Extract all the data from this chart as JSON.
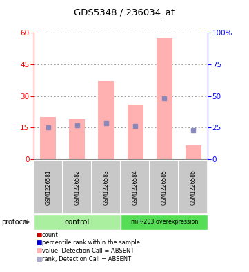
{
  "title": "GDS5348 / 236034_at",
  "samples": [
    "GSM1226581",
    "GSM1226582",
    "GSM1226583",
    "GSM1226584",
    "GSM1226585",
    "GSM1226586"
  ],
  "pink_bar_values": [
    20.0,
    19.0,
    37.0,
    26.0,
    57.5,
    6.5
  ],
  "blue_marker_values": [
    25.0,
    26.5,
    28.5,
    26.0,
    48.0,
    23.0
  ],
  "left_ylim": [
    0,
    60
  ],
  "right_ylim": [
    0,
    100
  ],
  "left_yticks": [
    0,
    15,
    30,
    45,
    60
  ],
  "right_yticks": [
    0,
    25,
    50,
    75,
    100
  ],
  "right_yticklabels": [
    "0",
    "25",
    "50",
    "75",
    "100%"
  ],
  "pink_color": "#ffb0b0",
  "blue_color": "#8888bb",
  "legend_items": [
    {
      "color": "#cc0000",
      "label": "count"
    },
    {
      "color": "#0000cc",
      "label": "percentile rank within the sample"
    },
    {
      "color": "#ffb0b0",
      "label": "value, Detection Call = ABSENT"
    },
    {
      "color": "#aaaacc",
      "label": "rank, Detection Call = ABSENT"
    }
  ],
  "grid_color": "#999999",
  "background_label_area": "#c8c8c8",
  "control_color": "#aaeea0",
  "overexp_color": "#55dd55"
}
